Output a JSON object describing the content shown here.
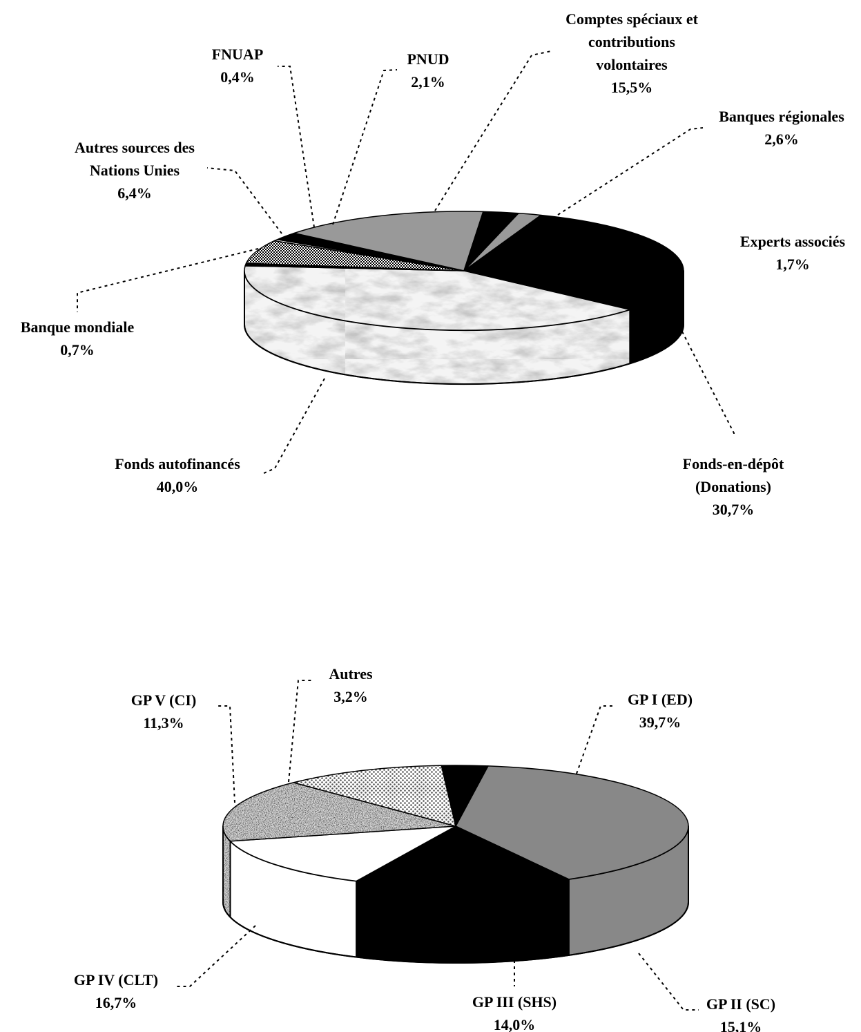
{
  "chart_data": [
    {
      "type": "pie",
      "title": "",
      "slices": [
        {
          "label": "Fonds-en-dépôt (Donations)",
          "label_lines": [
            "Fonds-en-dépôt",
            "(Donations)"
          ],
          "value": 30.7,
          "value_text": "30,7%",
          "fill": "#000000"
        },
        {
          "label": "Fonds autofinancés",
          "label_lines": [
            "Fonds autofinancés"
          ],
          "value": 40.0,
          "value_text": "40,0%",
          "fill": "marble"
        },
        {
          "label": "Banque mondiale",
          "label_lines": [
            "Banque mondiale"
          ],
          "value": 0.7,
          "value_text": "0,7%",
          "fill": "#000000"
        },
        {
          "label": "Autres sources des Nations Unies",
          "label_lines": [
            "Autres sources des",
            "Nations Unies"
          ],
          "value": 6.4,
          "value_text": "6,4%",
          "fill": "checker"
        },
        {
          "label": "FNUAP",
          "label_lines": [
            "FNUAP"
          ],
          "value": 0.4,
          "value_text": "0,4%",
          "fill": "#ffffff"
        },
        {
          "label": "PNUD",
          "label_lines": [
            "PNUD"
          ],
          "value": 2.1,
          "value_text": "2,1%",
          "fill": "#000000"
        },
        {
          "label": "Comptes spéciaux et contributions volontaires",
          "label_lines": [
            "Comptes spéciaux et",
            "contributions",
            "volontaires"
          ],
          "value": 15.5,
          "value_text": "15,5%",
          "fill": "#999999"
        },
        {
          "label": "Banques régionales",
          "label_lines": [
            "Banques régionales"
          ],
          "value": 2.6,
          "value_text": "2,6%",
          "fill": "#000000"
        },
        {
          "label": "Experts associés",
          "label_lines": [
            "Experts associés"
          ],
          "value": 1.7,
          "value_text": "1,7%",
          "fill": "#999999"
        }
      ]
    },
    {
      "type": "pie",
      "title": "",
      "slices": [
        {
          "label": "GP I (ED)",
          "label_lines": [
            "GP I (ED)"
          ],
          "value": 39.7,
          "value_text": "39,7%",
          "fill": "#888888"
        },
        {
          "label": "GP II (SC)",
          "label_lines": [
            "GP II (SC)"
          ],
          "value": 15.1,
          "value_text": "15,1%",
          "fill": "#000000"
        },
        {
          "label": "GP III (SHS)",
          "label_lines": [
            "GP III (SHS)"
          ],
          "value": 14.0,
          "value_text": "14,0%",
          "fill": "#ffffff"
        },
        {
          "label": "GP IV (CLT)",
          "label_lines": [
            "GP IV (CLT)"
          ],
          "value": 16.7,
          "value_text": "16,7%",
          "fill": "granite"
        },
        {
          "label": "GP V (CI)",
          "label_lines": [
            "GP V (CI)"
          ],
          "value": 11.3,
          "value_text": "11,3%",
          "fill": "dots"
        },
        {
          "label": "Autres",
          "label_lines": [
            "Autres"
          ],
          "value": 3.2,
          "value_text": "3,2%",
          "fill": "#000000"
        }
      ]
    }
  ]
}
